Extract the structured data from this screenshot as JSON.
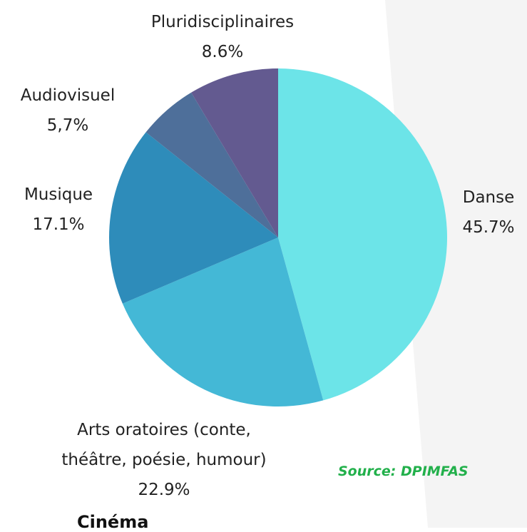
{
  "chart_data": {
    "type": "pie",
    "categories": [
      "Danse",
      "Arts oratoires (conte, théâtre, poésie, humour)",
      "Musique",
      "Audiovisuel",
      "Pluridisciplinaires"
    ],
    "values": [
      45.7,
      22.9,
      17.1,
      5.7,
      8.6
    ],
    "value_labels": [
      "45.7%",
      "22.9%",
      "17.1%",
      "5,7%",
      "8.6%"
    ],
    "colors": [
      "#6ce4e8",
      "#44b8d6",
      "#2e8cba",
      "#4e6f9a",
      "#635a90"
    ],
    "source": "Source: DPIMFAS",
    "footer_fragment": "Cinéma"
  }
}
